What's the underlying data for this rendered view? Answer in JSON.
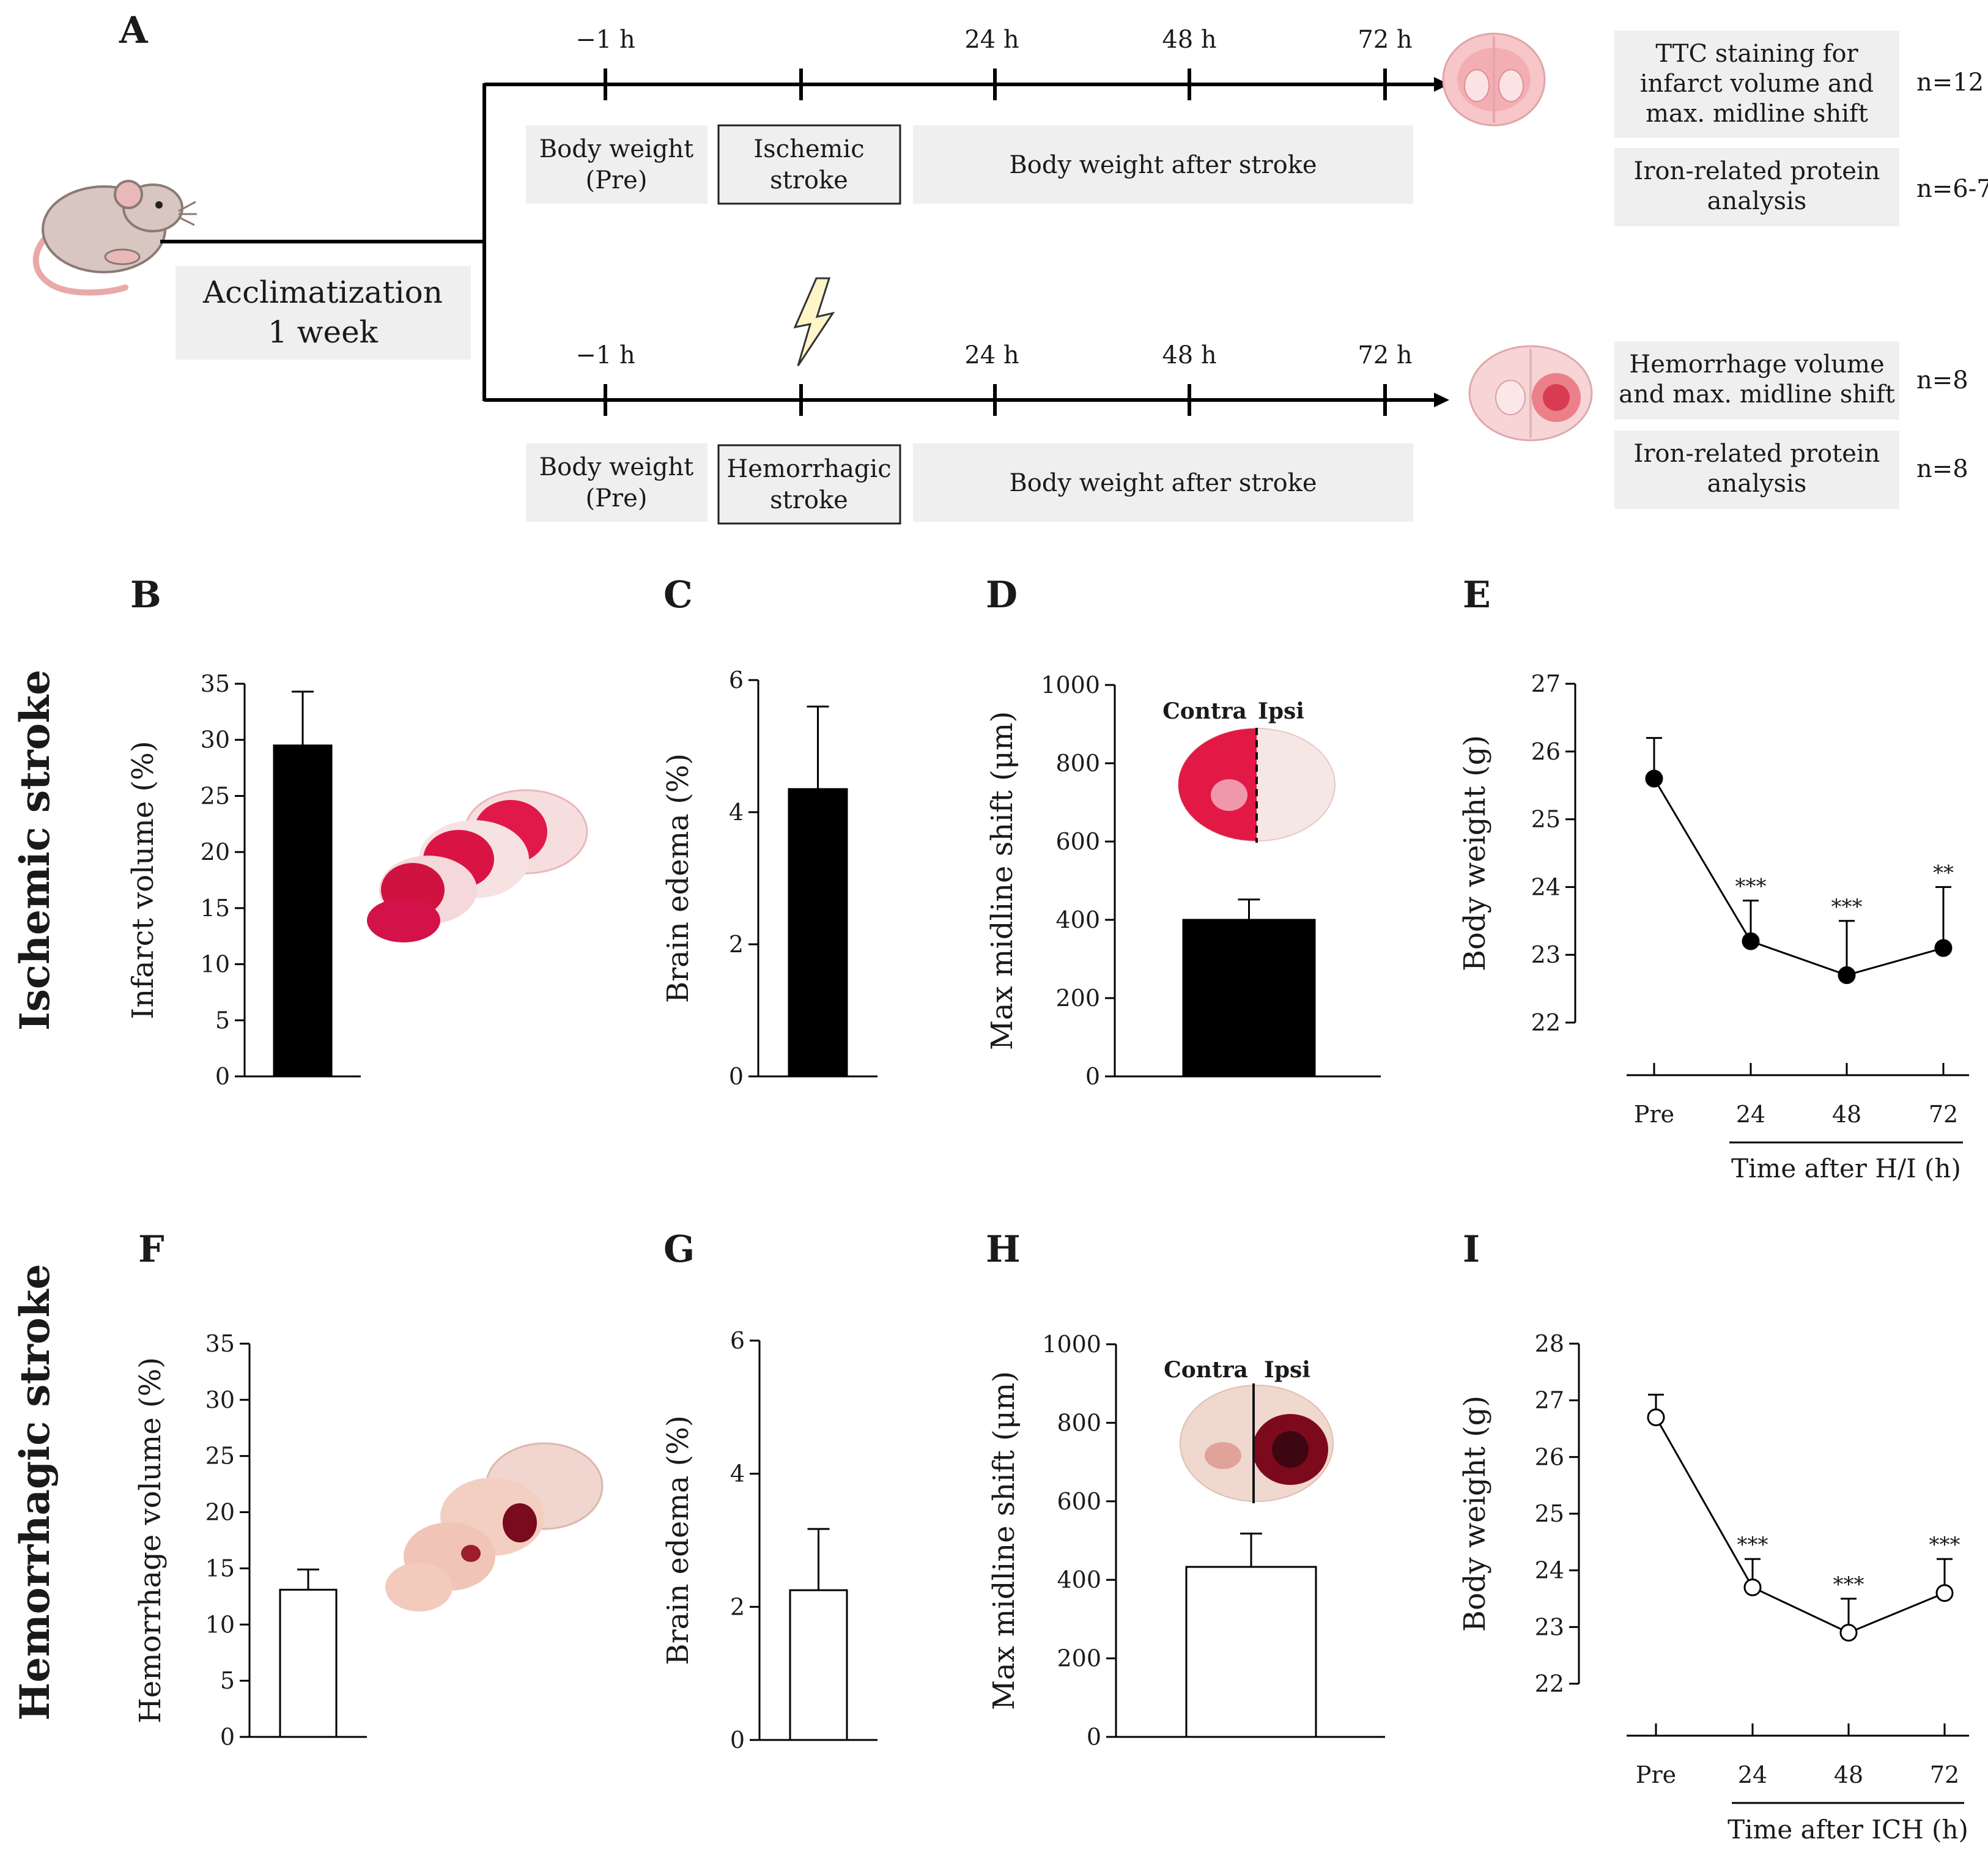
{
  "panels": {
    "A": "A",
    "B": "B",
    "C": "C",
    "D": "D",
    "E": "E",
    "F": "F",
    "G": "G",
    "H": "H",
    "I": "I"
  },
  "rows": {
    "ischemic": "Ischemic stroke",
    "hemorrhagic": "Hemorrhagic stroke"
  },
  "schematic": {
    "acclimatization": [
      "Acclimatization",
      "1 week"
    ],
    "time_labels": [
      "−1 h",
      "24 h",
      "48 h",
      "72 h"
    ],
    "top": {
      "boxes": [
        [
          "Body weight",
          "(Pre)"
        ],
        [
          "Ischemic",
          "stroke"
        ],
        [
          "Body weight after stroke"
        ]
      ],
      "outcomes": [
        {
          "lines": [
            "TTC staining for",
            "infarct volume and",
            "max. midline shift"
          ],
          "n": "n=12"
        },
        {
          "lines": [
            "Iron-related protein",
            "analysis"
          ],
          "n": "n=6-7"
        }
      ]
    },
    "bottom": {
      "boxes": [
        [
          "Body weight",
          "(Pre)"
        ],
        [
          "Hemorrhagic",
          "stroke"
        ],
        [
          "Body weight after stroke"
        ]
      ],
      "outcomes": [
        {
          "lines": [
            "Hemorrhage volume",
            "and max. midline shift"
          ],
          "n": "n=8"
        },
        {
          "lines": [
            "Iron-related protein",
            "analysis"
          ],
          "n": "n=8"
        }
      ]
    }
  },
  "colors": {
    "filled_bar": "#000000",
    "open_bar": "#ffffff",
    "box_bg": "#efefef",
    "ttc_red": "#d8143a",
    "blood": "#6b0a18"
  },
  "chart_data": [
    {
      "panel": "B",
      "type": "bar",
      "style": "filled",
      "categories": [
        "Ischemic"
      ],
      "values": [
        29.5
      ],
      "errors": [
        4.8
      ],
      "ylabel": "Infarct volume (%)",
      "ylim": [
        0,
        35
      ],
      "ticks": [
        0,
        5,
        10,
        15,
        20,
        25,
        30,
        35
      ]
    },
    {
      "panel": "C",
      "type": "bar",
      "style": "filled",
      "categories": [
        "Ischemic"
      ],
      "values": [
        4.35
      ],
      "errors": [
        1.25
      ],
      "ylabel": "Brain edema (%)",
      "ylim": [
        0,
        6
      ],
      "ticks": [
        0,
        2,
        4,
        6
      ]
    },
    {
      "panel": "D",
      "type": "bar",
      "style": "filled",
      "categories": [
        "Ischemic"
      ],
      "values": [
        400
      ],
      "errors": [
        52
      ],
      "ylabel": "Max midline shift (μm)",
      "ylim": [
        0,
        1000
      ],
      "ticks": [
        0,
        200,
        400,
        600,
        800,
        1000
      ],
      "annotations": [
        "Contra",
        "Ipsi"
      ]
    },
    {
      "panel": "E",
      "type": "line",
      "marker": "filled",
      "x": [
        "Pre",
        "24",
        "48",
        "72"
      ],
      "values": [
        25.6,
        23.2,
        22.7,
        23.1
      ],
      "errors": [
        0.6,
        0.6,
        0.8,
        0.9
      ],
      "sig": [
        "",
        "***",
        "***",
        "**"
      ],
      "ylabel": "Body weight (g)",
      "xlabel": "Time after H/I (h)",
      "ylim": [
        22,
        27
      ],
      "ticks": [
        22,
        23,
        24,
        25,
        26,
        27
      ]
    },
    {
      "panel": "F",
      "type": "bar",
      "style": "open",
      "categories": [
        "Hemorrhagic"
      ],
      "values": [
        13.1
      ],
      "errors": [
        1.8
      ],
      "ylabel": "Hemorrhage volume (%)",
      "ylim": [
        0,
        35
      ],
      "ticks": [
        0,
        5,
        10,
        15,
        20,
        25,
        30,
        35
      ]
    },
    {
      "panel": "G",
      "type": "bar",
      "style": "open",
      "categories": [
        "Hemorrhagic"
      ],
      "values": [
        2.25
      ],
      "errors": [
        0.92
      ],
      "ylabel": "Brain edema (%)",
      "ylim": [
        0,
        6
      ],
      "ticks": [
        0,
        2,
        4,
        6
      ]
    },
    {
      "panel": "H",
      "type": "bar",
      "style": "open",
      "categories": [
        "Hemorrhagic"
      ],
      "values": [
        433
      ],
      "errors": [
        85
      ],
      "ylabel": "Max midline shift (μm)",
      "ylim": [
        0,
        1000
      ],
      "ticks": [
        0,
        200,
        400,
        600,
        800,
        1000
      ],
      "annotations": [
        "Contra",
        "Ipsi"
      ]
    },
    {
      "panel": "I",
      "type": "line",
      "marker": "open",
      "x": [
        "Pre",
        "24",
        "48",
        "72"
      ],
      "values": [
        26.7,
        23.7,
        22.9,
        23.6
      ],
      "errors": [
        0.4,
        0.5,
        0.6,
        0.6
      ],
      "sig": [
        "",
        "***",
        "***",
        "***"
      ],
      "ylabel": "Body weight (g)",
      "xlabel": "Time after ICH (h)",
      "ylim": [
        22,
        28
      ],
      "ticks": [
        22,
        23,
        24,
        25,
        26,
        27,
        28
      ]
    }
  ]
}
